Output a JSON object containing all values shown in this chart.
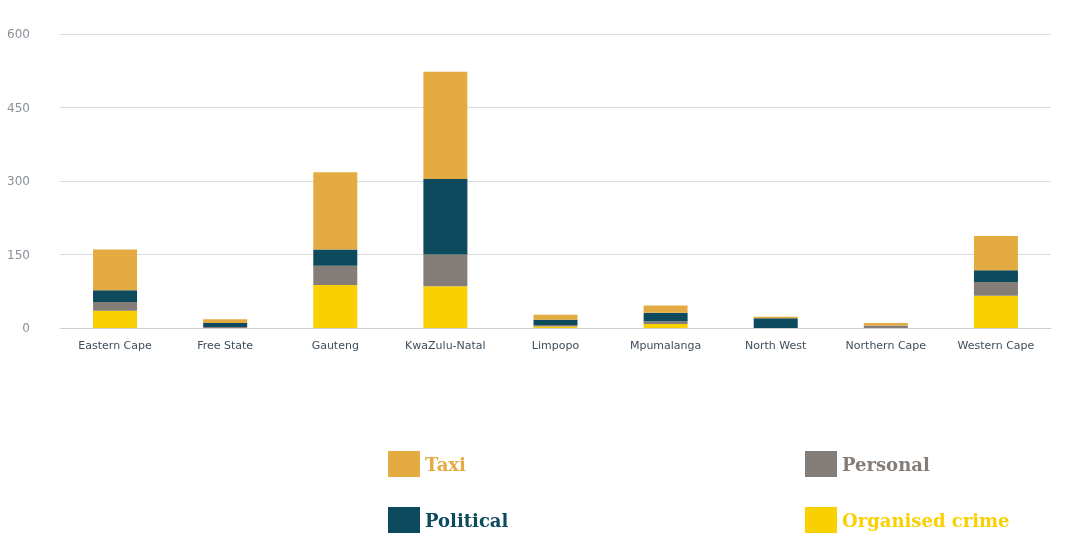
{
  "chart_data": {
    "type": "bar",
    "stacked": true,
    "categories": [
      "Eastern Cape",
      "Free State",
      "Gauteng",
      "KwaZulu-Natal",
      "Limpopo",
      "Mpumalanga",
      "North West",
      "Northern Cape",
      "Western Cape"
    ],
    "series": [
      {
        "name": "Organised crime",
        "color": "#f9d001",
        "values": [
          35,
          0,
          88,
          85,
          3,
          8,
          0,
          0,
          66
        ]
      },
      {
        "name": "Personal",
        "color": "#857d78",
        "values": [
          18,
          2,
          39,
          65,
          3,
          6,
          0,
          5,
          28
        ]
      },
      {
        "name": "Political",
        "color": "#0d4a5e",
        "values": [
          24,
          8,
          33,
          154,
          11,
          17,
          20,
          0,
          24
        ]
      },
      {
        "name": "Taxi",
        "color": "#e3ab42",
        "values": [
          83,
          8,
          158,
          219,
          10,
          15,
          3,
          5,
          70
        ]
      }
    ],
    "ylim": [
      0,
      600
    ],
    "yticks": [
      0,
      150,
      300,
      450,
      600
    ],
    "grid": "y",
    "legend": "bottom"
  }
}
